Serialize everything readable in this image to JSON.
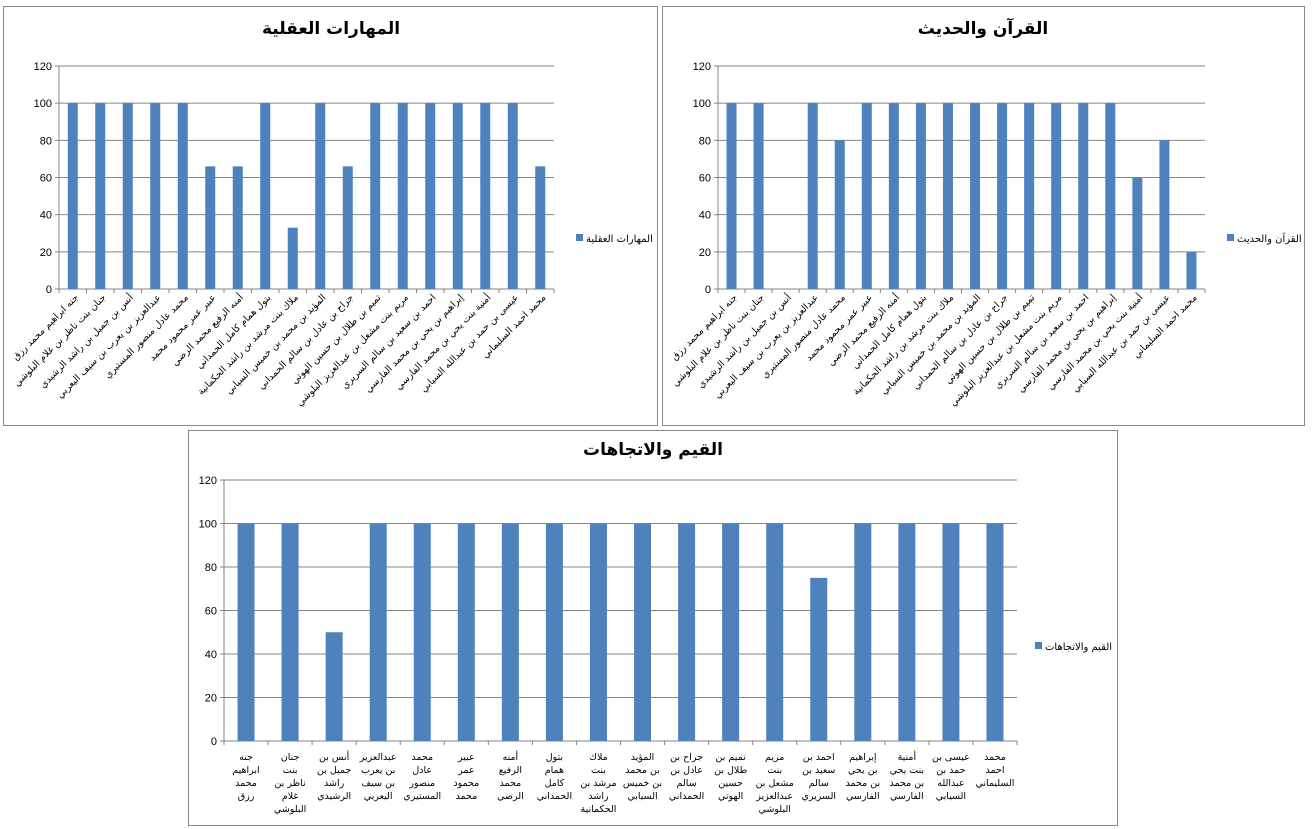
{
  "chart_data": [
    {
      "type": "bar",
      "title": "المهارات العقلية",
      "ylim": [
        0,
        120
      ],
      "yticks": [
        0,
        20,
        40,
        60,
        80,
        100,
        120
      ],
      "grid": true,
      "legend_position": "right",
      "series": [
        {
          "name": "المهارات العقلية",
          "color": "#4f81bd",
          "values": [
            100,
            100,
            100,
            100,
            100,
            66,
            66,
            100,
            33,
            100,
            66,
            100,
            100,
            100,
            100,
            100,
            100,
            66
          ]
        }
      ],
      "categories": [
        "جنه ابراهيم محمد رزق",
        "جنان بنت ناظر بن غلام البلوشي",
        "أنس بن جميل بن راشد الرشيدي",
        "عبدالعزيز بن يعرب بن سيف اليعربي",
        "محمد عادل منصور المستيري",
        "عبير عمر محمود محمد",
        "أمنه الرفيع محمد الرضي",
        "بتول همام كامل الحمداني",
        "ملاك بنت مرشد بن راشد الحكمانية",
        "المؤيد بن محمد بن خميس السيابي",
        "جراح بن عادل بن سالم الحمداني",
        "تميم بن طلال بن حسين الهوتي",
        "مريم بنت مشعل بن عبدالعزيز البلوشي",
        "احمد بن سعيد بن سالم السريري",
        "إبراهيم بن يحي بن محمد الفارسي",
        "أمنية بنت يحي بن محمد الفارسي",
        "عيسى بن حمد بن عبدالله السيابي",
        "محمد احمد السليماني"
      ]
    },
    {
      "type": "bar",
      "title": "القرآن والحديث",
      "ylim": [
        0,
        120
      ],
      "yticks": [
        0,
        20,
        40,
        60,
        80,
        100,
        120
      ],
      "grid": true,
      "legend_position": "right",
      "series": [
        {
          "name": "القرآن والحديث",
          "color": "#4f81bd",
          "values": [
            100,
            100,
            0,
            100,
            80,
            100,
            100,
            100,
            100,
            100,
            100,
            100,
            100,
            100,
            100,
            60,
            80,
            20
          ]
        }
      ],
      "categories": [
        "جنه ابراهيم محمد رزق",
        "جنان بنت ناظر بن غلام البلوشي",
        "أنس بن جميل بن راشد الرشيدي",
        "عبدالعزيز بن يعرب بن سيف اليعربي",
        "محمد عادل منصور المستيري",
        "عبير عمر محمود محمد",
        "أمنه الرفيع محمد الرضي",
        "بتول همام كامل الحمداني",
        "ملاك بنت مرشد بن راشد الحكمانية",
        "المؤيد بن محمد بن خميس السيابي",
        "جراح بن عادل بن سالم الحمداني",
        "تميم بن طلال بن حسين الهوتي",
        "مريم بنت مشعل بن عبدالعزيز البلوشي",
        "احمد بن سعيد بن سالم السريري",
        "إبراهيم بن يحي بن محمد الفارسي",
        "أمنية بنت يحي بن محمد الفارسي",
        "عيسى بن حمد بن عبدالله السيابي",
        "محمد احمد السليماني"
      ]
    },
    {
      "type": "bar",
      "title": "القيم والاتجاهات",
      "ylim": [
        0,
        120
      ],
      "yticks": [
        0,
        20,
        40,
        60,
        80,
        100,
        120
      ],
      "grid": true,
      "legend_position": "right",
      "series": [
        {
          "name": "القيم والاتجاهات",
          "color": "#4f81bd",
          "values": [
            100,
            100,
            50,
            100,
            100,
            100,
            100,
            100,
            100,
            100,
            100,
            100,
            100,
            75,
            100,
            100,
            100,
            100
          ]
        }
      ],
      "categories": [
        "جنه ابراهيم محمد رزق",
        "جنان بنت ناظر بن غلام البلوشي",
        "أنس بن جميل بن راشد الرشيدي",
        "عبدالعزيز بن يعرب بن سيف اليعربي",
        "محمد عادل منصور المستيري",
        "عبير عمر محمود محمد",
        "أمنه الرفيع محمد الرضي",
        "بتول همام كامل الحمداني",
        "ملاك بنت مرشد بن راشد الحكمانية",
        "المؤيد بن محمد بن خميس السيابي",
        "جراح بن عادل بن سالم الحمداني",
        "تميم بن طلال بن حسين الهوتي",
        "مريم بنت مشعل بن عبدالعزيز البلوشي",
        "احمد بن سعيد بن سالم السريري",
        "إبراهيم بن يحي بن محمد الفارسي",
        "أمنية بنت يحي بن محمد الفارسي",
        "عيسى بن حمد بن عبدالله السيابي",
        "محمد احمد السليماني"
      ]
    }
  ]
}
